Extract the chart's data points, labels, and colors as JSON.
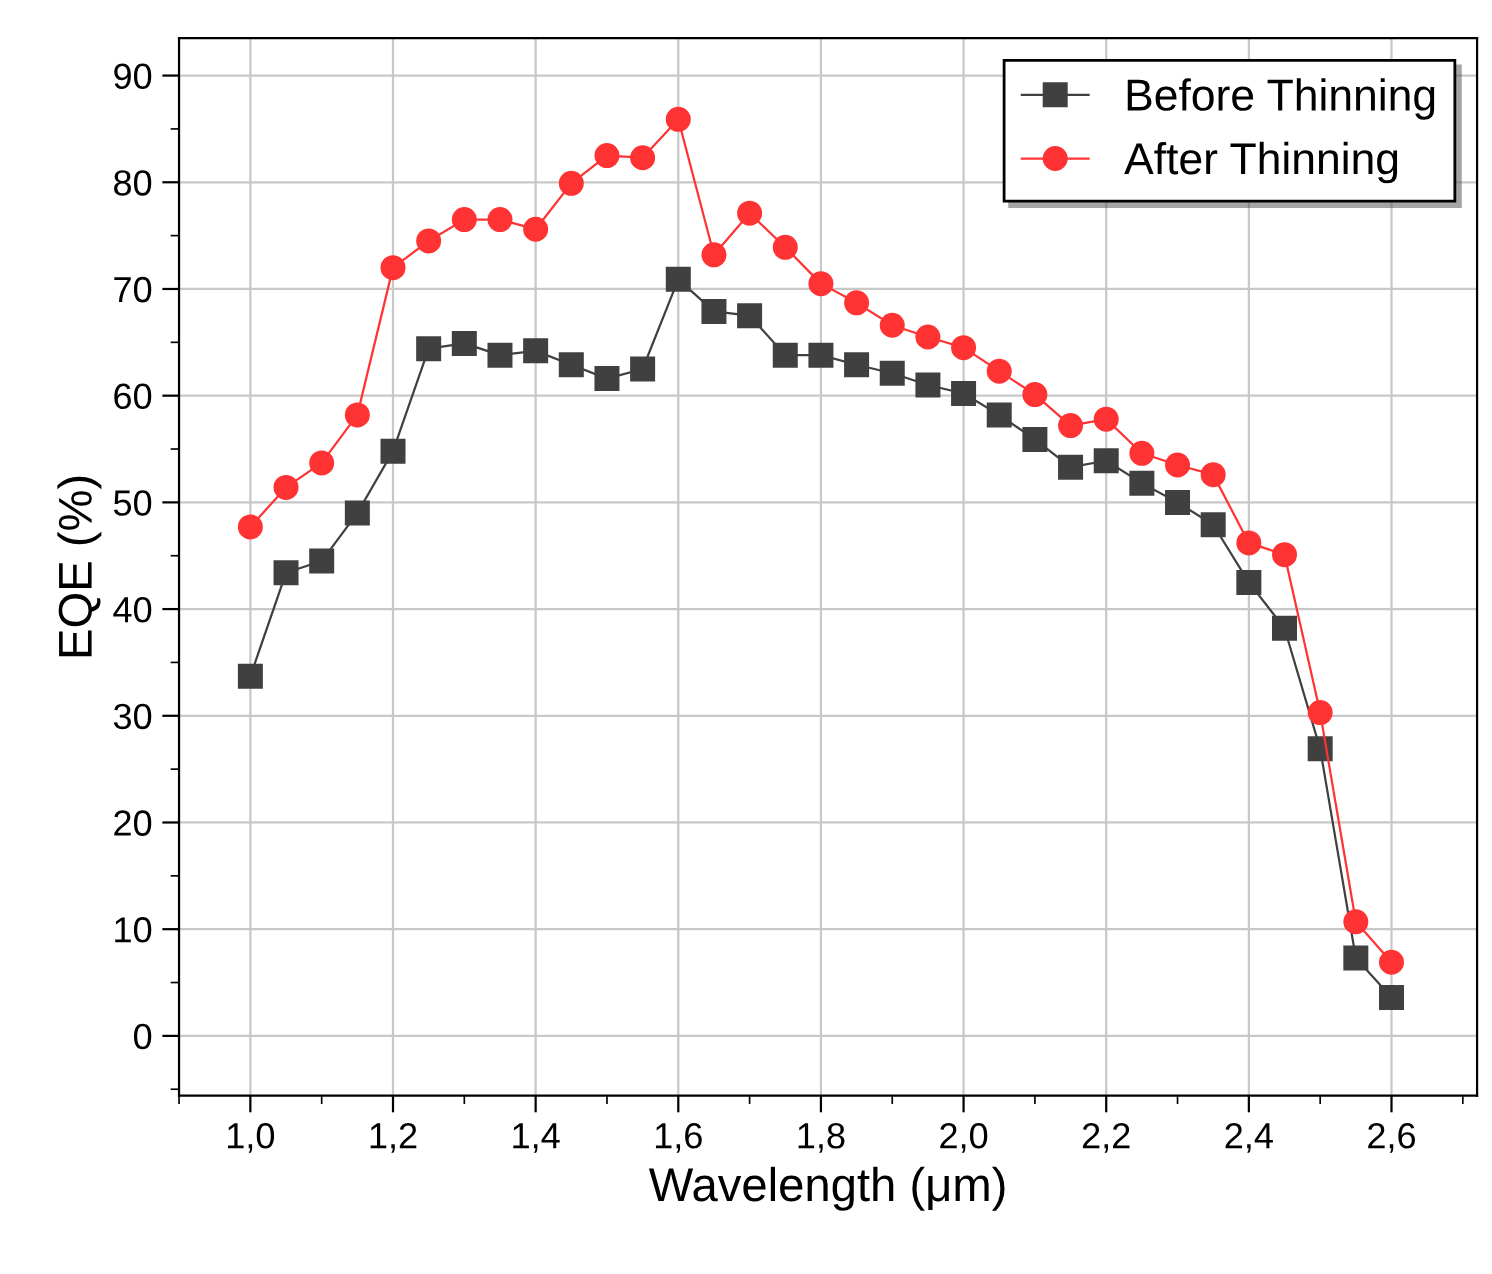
{
  "chart_data": {
    "type": "line",
    "xlabel": "Wavelength (μm)",
    "ylabel": "EQE (%)",
    "x": [
      1.0,
      1.05,
      1.1,
      1.15,
      1.2,
      1.25,
      1.3,
      1.35,
      1.4,
      1.45,
      1.5,
      1.55,
      1.6,
      1.65,
      1.7,
      1.75,
      1.8,
      1.85,
      1.9,
      1.95,
      2.0,
      2.05,
      2.1,
      2.15,
      2.2,
      2.25,
      2.3,
      2.35,
      2.4,
      2.45,
      2.5,
      2.55,
      2.6
    ],
    "series": [
      {
        "name": "Before Thinning",
        "color": "#404040",
        "marker": "square",
        "values": [
          33.7,
          43.4,
          44.5,
          49,
          54.8,
          64.4,
          64.9,
          63.8,
          64.2,
          62.9,
          61.6,
          62.5,
          70.9,
          67.9,
          67.5,
          63.8,
          63.8,
          62.9,
          62.1,
          61,
          60.2,
          58.2,
          55.9,
          53.3,
          53.9,
          51.8,
          50,
          47.9,
          42.5,
          38.2,
          26.9,
          7.3,
          3.6
        ]
      },
      {
        "name": "After Thinning",
        "color": "#ff3333",
        "marker": "circle",
        "values": [
          47.7,
          51.4,
          53.7,
          58.2,
          72,
          74.5,
          76.5,
          76.5,
          75.6,
          79.9,
          82.5,
          82.3,
          85.9,
          73.2,
          77.1,
          73.9,
          70.5,
          68.7,
          66.6,
          65.5,
          64.5,
          62.3,
          60.1,
          57.2,
          57.8,
          54.6,
          53.5,
          52.6,
          46.2,
          45.1,
          30.3,
          10.7,
          6.9
        ]
      }
    ],
    "xlim": [
      0.9,
      2.72
    ],
    "ylim": [
      -5.6,
      93.5
    ],
    "xticks": [
      {
        "value": 1.0,
        "label": "1,0"
      },
      {
        "value": 1.2,
        "label": "1,2"
      },
      {
        "value": 1.4,
        "label": "1,4"
      },
      {
        "value": 1.6,
        "label": "1,6"
      },
      {
        "value": 1.8,
        "label": "1,8"
      },
      {
        "value": 2.0,
        "label": "2,0"
      },
      {
        "value": 2.2,
        "label": "2,2"
      },
      {
        "value": 2.4,
        "label": "2,4"
      },
      {
        "value": 2.6,
        "label": "2,6"
      }
    ],
    "yticks": [
      0,
      10,
      20,
      30,
      40,
      50,
      60,
      70,
      80,
      90
    ],
    "grid": true,
    "legend": "top right",
    "line_style": "solid"
  }
}
